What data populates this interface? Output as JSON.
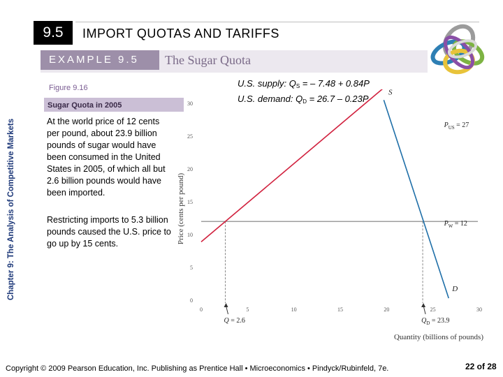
{
  "header": {
    "section_number": "9.5",
    "section_title": "IMPORT QUOTAS AND TARIFFS"
  },
  "example": {
    "label": "EXAMPLE 9.5",
    "title": "The Sugar Quota"
  },
  "side_caption": "Chapter 9:  The Analysis of Competitive Markets",
  "figure": {
    "label": "Figure 9.16",
    "title": "Sugar Quota in 2005"
  },
  "body": {
    "paragraph_1": "At the world price of 12 cents per pound, about 23.9 billion pounds of sugar would have been consumed in the United States in 2005, of which all but 2.6 billion pounds would have been imported.",
    "paragraph_2": "Restricting imports to 5.3 billion pounds caused the U.S. price to go up by 15 cents."
  },
  "equations": {
    "supply_prefix": "U.S. supply: Q",
    "supply_sub": "S",
    "supply_rhs": " = – 7.48 + 0.84P",
    "demand_prefix": "U.S. demand: Q",
    "demand_sub": "D",
    "demand_rhs": " = 26.7 – 0.23P"
  },
  "chart_data": {
    "type": "line",
    "xlabel": "Quantity (billions of pounds)",
    "ylabel": "Price (cents per pound)",
    "xlim": [
      0,
      30
    ],
    "ylim": [
      0,
      30
    ],
    "xticks": [
      0,
      5,
      10,
      15,
      20,
      25,
      30
    ],
    "yticks": [
      0,
      5,
      10,
      15,
      20,
      25,
      30
    ],
    "x_tick_labels": [
      "0",
      "5",
      "10",
      "15",
      "20",
      "25",
      "30"
    ],
    "y_tick_labels": [
      "0",
      "5",
      "10",
      "15",
      "20",
      "25",
      "30"
    ],
    "series": [
      {
        "name": "S",
        "color": "#d1213e",
        "x": [
          0,
          19.9
        ],
        "y": [
          8.9,
          32.6
        ]
      },
      {
        "name": "D",
        "color": "#1f6fa8",
        "x": [
          19.7,
          26.7
        ],
        "y": [
          30.5,
          0.3
        ]
      }
    ],
    "price_lines": [
      {
        "label": "P",
        "sub": "US",
        "value_text": " = 27",
        "y": 27
      },
      {
        "label": "P",
        "sub": "W",
        "value_text": " = 12",
        "y": 12
      }
    ],
    "quantity_markers": [
      {
        "label": "Q",
        "sub": "",
        "value_text": " = 2.6",
        "x": 2.6,
        "y": 12
      },
      {
        "label": "Q",
        "sub": "D",
        "value_text": " = 23.9",
        "x": 23.9,
        "y": 12
      }
    ],
    "world_price_line": {
      "y": 12,
      "color": "#7f7f7f"
    },
    "grid": false
  },
  "footer": {
    "copyright": "Copyright © 2009 Pearson Education, Inc. Publishing as Prentice Hall • Microeconomics • Pindyck/Rubinfeld, 7e.",
    "page": "22 of 28"
  },
  "colors": {
    "example_bar": "#ece8ef",
    "example_label": "#9d8fa9",
    "figure_title_box": "#cbbfd6",
    "supply_line": "#d1213e",
    "demand_line": "#1f6fa8",
    "side_caption": "#1f3a7a"
  },
  "icons": {
    "logo": "interlocking-rings-logo"
  }
}
